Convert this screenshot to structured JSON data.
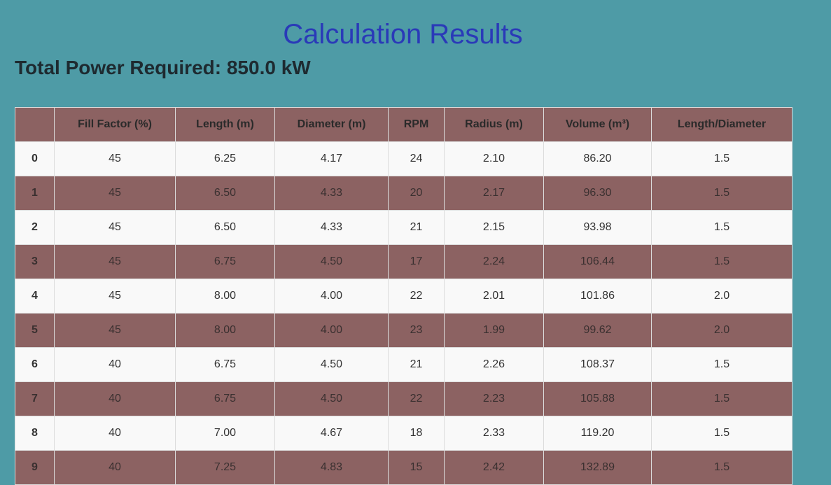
{
  "page": {
    "title": "Calculation Results",
    "total_power": "Total Power Required: 850.0 kW"
  },
  "colors": {
    "background": "#4e9ba6",
    "title": "#2a3ab8",
    "row_alt": "#8c6262",
    "row_light": "#f9f9f9"
  },
  "table": {
    "columns": [
      "",
      "Fill Factor (%)",
      "Length (m)",
      "Diameter (m)",
      "RPM",
      "Radius (m)",
      "Volume (m³)",
      "Length/Diameter"
    ],
    "rows": [
      [
        "0",
        "45",
        "6.25",
        "4.17",
        "24",
        "2.10",
        "86.20",
        "1.5"
      ],
      [
        "1",
        "45",
        "6.50",
        "4.33",
        "20",
        "2.17",
        "96.30",
        "1.5"
      ],
      [
        "2",
        "45",
        "6.50",
        "4.33",
        "21",
        "2.15",
        "93.98",
        "1.5"
      ],
      [
        "3",
        "45",
        "6.75",
        "4.50",
        "17",
        "2.24",
        "106.44",
        "1.5"
      ],
      [
        "4",
        "45",
        "8.00",
        "4.00",
        "22",
        "2.01",
        "101.86",
        "2.0"
      ],
      [
        "5",
        "45",
        "8.00",
        "4.00",
        "23",
        "1.99",
        "99.62",
        "2.0"
      ],
      [
        "6",
        "40",
        "6.75",
        "4.50",
        "21",
        "2.26",
        "108.37",
        "1.5"
      ],
      [
        "7",
        "40",
        "6.75",
        "4.50",
        "22",
        "2.23",
        "105.88",
        "1.5"
      ],
      [
        "8",
        "40",
        "7.00",
        "4.67",
        "18",
        "2.33",
        "119.20",
        "1.5"
      ],
      [
        "9",
        "40",
        "7.25",
        "4.83",
        "15",
        "2.42",
        "132.89",
        "1.5"
      ]
    ]
  }
}
